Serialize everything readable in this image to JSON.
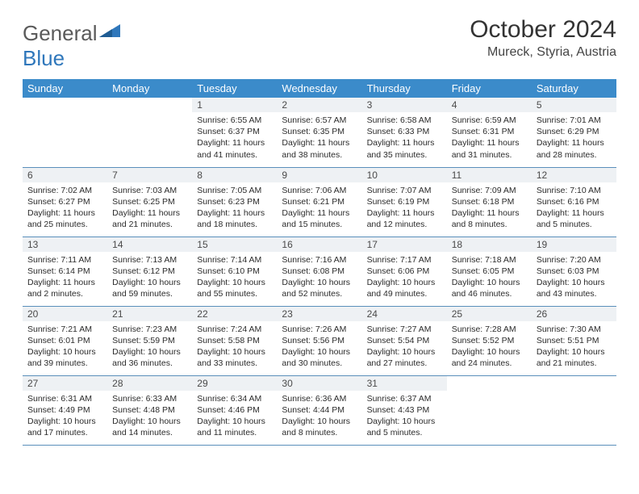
{
  "logo": {
    "text_general": "General",
    "text_blue": "Blue"
  },
  "title": "October 2024",
  "subtitle": "Mureck, Styria, Austria",
  "colors": {
    "header_bg": "#3b8bca",
    "header_text": "#ffffff",
    "daynum_bg": "#eef1f4",
    "row_border": "#5a8fbb",
    "logo_gray": "#5a5a5a",
    "logo_blue": "#2f77bb"
  },
  "dayHeaders": [
    "Sunday",
    "Monday",
    "Tuesday",
    "Wednesday",
    "Thursday",
    "Friday",
    "Saturday"
  ],
  "weeks": [
    [
      null,
      null,
      {
        "n": "1",
        "sr": "6:55 AM",
        "ss": "6:37 PM",
        "dl": "11 hours and 41 minutes."
      },
      {
        "n": "2",
        "sr": "6:57 AM",
        "ss": "6:35 PM",
        "dl": "11 hours and 38 minutes."
      },
      {
        "n": "3",
        "sr": "6:58 AM",
        "ss": "6:33 PM",
        "dl": "11 hours and 35 minutes."
      },
      {
        "n": "4",
        "sr": "6:59 AM",
        "ss": "6:31 PM",
        "dl": "11 hours and 31 minutes."
      },
      {
        "n": "5",
        "sr": "7:01 AM",
        "ss": "6:29 PM",
        "dl": "11 hours and 28 minutes."
      }
    ],
    [
      {
        "n": "6",
        "sr": "7:02 AM",
        "ss": "6:27 PM",
        "dl": "11 hours and 25 minutes."
      },
      {
        "n": "7",
        "sr": "7:03 AM",
        "ss": "6:25 PM",
        "dl": "11 hours and 21 minutes."
      },
      {
        "n": "8",
        "sr": "7:05 AM",
        "ss": "6:23 PM",
        "dl": "11 hours and 18 minutes."
      },
      {
        "n": "9",
        "sr": "7:06 AM",
        "ss": "6:21 PM",
        "dl": "11 hours and 15 minutes."
      },
      {
        "n": "10",
        "sr": "7:07 AM",
        "ss": "6:19 PM",
        "dl": "11 hours and 12 minutes."
      },
      {
        "n": "11",
        "sr": "7:09 AM",
        "ss": "6:18 PM",
        "dl": "11 hours and 8 minutes."
      },
      {
        "n": "12",
        "sr": "7:10 AM",
        "ss": "6:16 PM",
        "dl": "11 hours and 5 minutes."
      }
    ],
    [
      {
        "n": "13",
        "sr": "7:11 AM",
        "ss": "6:14 PM",
        "dl": "11 hours and 2 minutes."
      },
      {
        "n": "14",
        "sr": "7:13 AM",
        "ss": "6:12 PM",
        "dl": "10 hours and 59 minutes."
      },
      {
        "n": "15",
        "sr": "7:14 AM",
        "ss": "6:10 PM",
        "dl": "10 hours and 55 minutes."
      },
      {
        "n": "16",
        "sr": "7:16 AM",
        "ss": "6:08 PM",
        "dl": "10 hours and 52 minutes."
      },
      {
        "n": "17",
        "sr": "7:17 AM",
        "ss": "6:06 PM",
        "dl": "10 hours and 49 minutes."
      },
      {
        "n": "18",
        "sr": "7:18 AM",
        "ss": "6:05 PM",
        "dl": "10 hours and 46 minutes."
      },
      {
        "n": "19",
        "sr": "7:20 AM",
        "ss": "6:03 PM",
        "dl": "10 hours and 43 minutes."
      }
    ],
    [
      {
        "n": "20",
        "sr": "7:21 AM",
        "ss": "6:01 PM",
        "dl": "10 hours and 39 minutes."
      },
      {
        "n": "21",
        "sr": "7:23 AM",
        "ss": "5:59 PM",
        "dl": "10 hours and 36 minutes."
      },
      {
        "n": "22",
        "sr": "7:24 AM",
        "ss": "5:58 PM",
        "dl": "10 hours and 33 minutes."
      },
      {
        "n": "23",
        "sr": "7:26 AM",
        "ss": "5:56 PM",
        "dl": "10 hours and 30 minutes."
      },
      {
        "n": "24",
        "sr": "7:27 AM",
        "ss": "5:54 PM",
        "dl": "10 hours and 27 minutes."
      },
      {
        "n": "25",
        "sr": "7:28 AM",
        "ss": "5:52 PM",
        "dl": "10 hours and 24 minutes."
      },
      {
        "n": "26",
        "sr": "7:30 AM",
        "ss": "5:51 PM",
        "dl": "10 hours and 21 minutes."
      }
    ],
    [
      {
        "n": "27",
        "sr": "6:31 AM",
        "ss": "4:49 PM",
        "dl": "10 hours and 17 minutes."
      },
      {
        "n": "28",
        "sr": "6:33 AM",
        "ss": "4:48 PM",
        "dl": "10 hours and 14 minutes."
      },
      {
        "n": "29",
        "sr": "6:34 AM",
        "ss": "4:46 PM",
        "dl": "10 hours and 11 minutes."
      },
      {
        "n": "30",
        "sr": "6:36 AM",
        "ss": "4:44 PM",
        "dl": "10 hours and 8 minutes."
      },
      {
        "n": "31",
        "sr": "6:37 AM",
        "ss": "4:43 PM",
        "dl": "10 hours and 5 minutes."
      },
      null,
      null
    ]
  ],
  "labels": {
    "sunrise": "Sunrise:",
    "sunset": "Sunset:",
    "daylight": "Daylight:"
  }
}
